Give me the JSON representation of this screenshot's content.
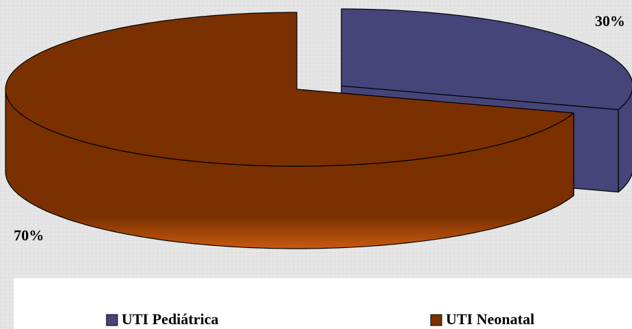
{
  "chart_data": {
    "type": "pie",
    "categories": [
      "UTI Pediátrica",
      "UTI Neonatal"
    ],
    "values": [
      30,
      70
    ],
    "value_labels": [
      "30%",
      "70%"
    ],
    "colors": [
      "#45457a",
      "#7a3000"
    ],
    "legend": "bottom"
  }
}
